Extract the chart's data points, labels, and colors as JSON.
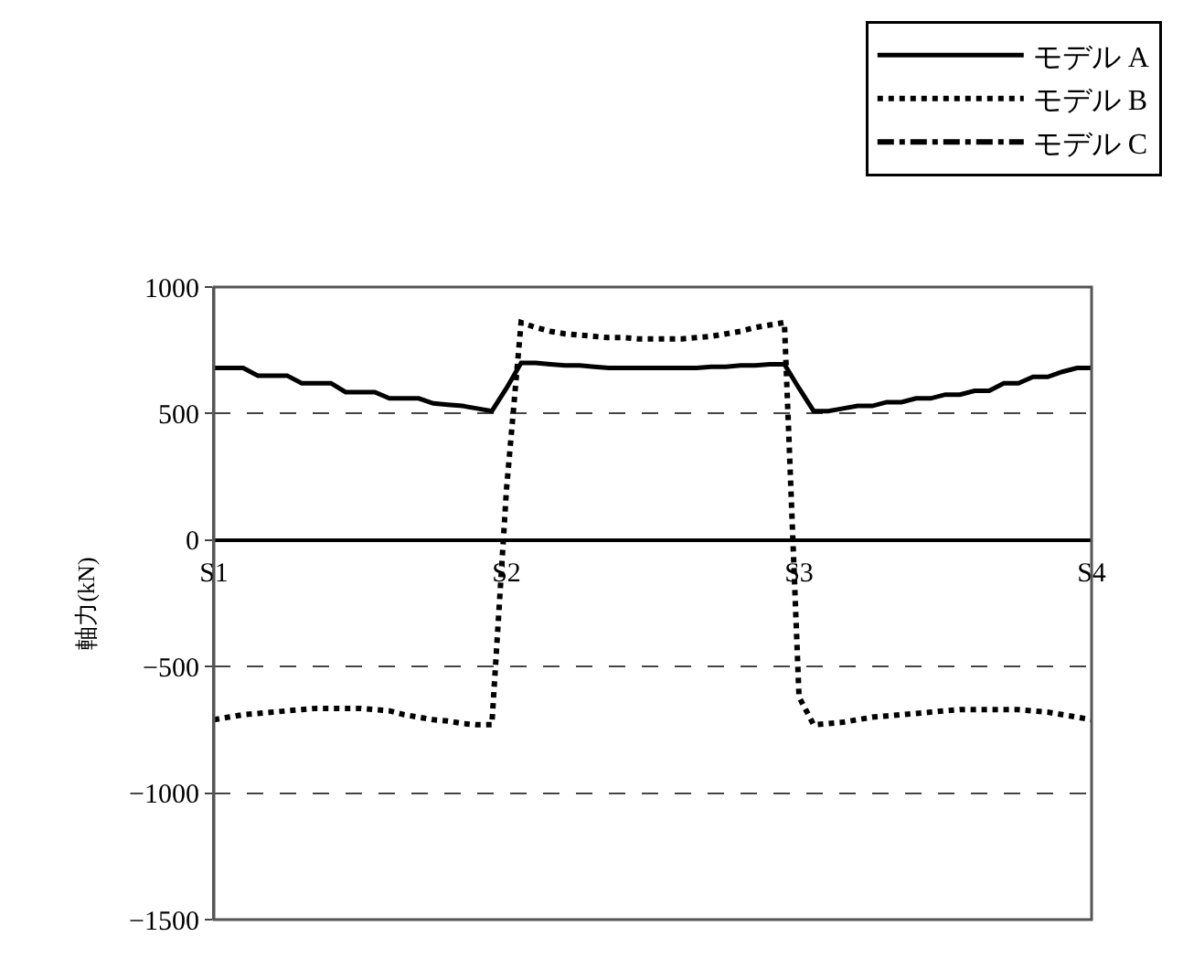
{
  "chart_data": {
    "type": "line",
    "ylabel": "軸力(kN)",
    "categories": [
      "S1",
      null,
      null,
      null,
      null,
      null,
      null,
      null,
      null,
      null,
      null,
      null,
      null,
      null,
      null,
      null,
      null,
      null,
      null,
      null,
      "S2",
      null,
      null,
      null,
      null,
      null,
      null,
      null,
      null,
      null,
      null,
      null,
      null,
      null,
      null,
      null,
      null,
      null,
      null,
      null,
      "S3",
      null,
      null,
      null,
      null,
      null,
      null,
      null,
      null,
      null,
      null,
      null,
      null,
      null,
      null,
      null,
      null,
      null,
      null,
      null,
      "S4"
    ],
    "ylim": [
      -1500,
      1000
    ],
    "yticks": [
      -1500,
      -1000,
      -500,
      0,
      500,
      1000
    ],
    "grid": "y",
    "legend": "top right",
    "marker": "none",
    "series": [
      {
        "name": "モデル A",
        "color": "#000000",
        "line_style": "solid",
        "values": [
          680,
          680,
          680,
          650,
          650,
          650,
          620,
          620,
          620,
          585,
          585,
          585,
          560,
          560,
          560,
          540,
          535,
          530,
          520,
          510,
          600,
          700,
          700,
          695,
          690,
          690,
          685,
          680,
          680,
          680,
          680,
          680,
          680,
          680,
          685,
          685,
          690,
          690,
          695,
          695,
          600,
          510,
          510,
          520,
          530,
          530,
          545,
          545,
          560,
          560,
          575,
          575,
          590,
          590,
          620,
          620,
          645,
          645,
          665,
          680,
          680
        ]
      },
      {
        "name": "モデル B",
        "color": "#000000",
        "line_style": "dotted",
        "values": [
          -710,
          -700,
          -690,
          -685,
          -680,
          -675,
          -670,
          -665,
          -665,
          -665,
          -665,
          -670,
          -675,
          -690,
          -700,
          -710,
          -715,
          -725,
          -730,
          -730,
          200,
          860,
          840,
          825,
          815,
          810,
          805,
          800,
          800,
          795,
          795,
          795,
          795,
          800,
          805,
          815,
          825,
          840,
          850,
          860,
          -620,
          -730,
          -725,
          -720,
          -710,
          -700,
          -695,
          -690,
          -685,
          -680,
          -675,
          -670,
          -670,
          -670,
          -670,
          -670,
          -675,
          -680,
          -690,
          -700,
          -710
        ]
      },
      {
        "name": "モデル C",
        "color": "#000000",
        "line_style": "dashdot",
        "values": [
          null,
          null,
          null,
          null,
          null,
          null,
          null,
          null,
          null,
          null,
          null,
          null,
          null,
          null,
          null,
          null,
          null,
          null,
          null,
          null,
          null,
          null,
          null,
          null,
          null,
          null,
          null,
          null,
          null,
          null,
          null,
          null,
          null,
          null,
          null,
          null,
          null,
          null,
          null,
          null,
          null,
          null,
          null,
          null,
          null,
          null,
          null,
          null,
          null,
          null,
          null,
          null,
          null,
          null,
          null,
          null,
          null,
          null,
          null,
          null,
          null
        ]
      }
    ]
  }
}
